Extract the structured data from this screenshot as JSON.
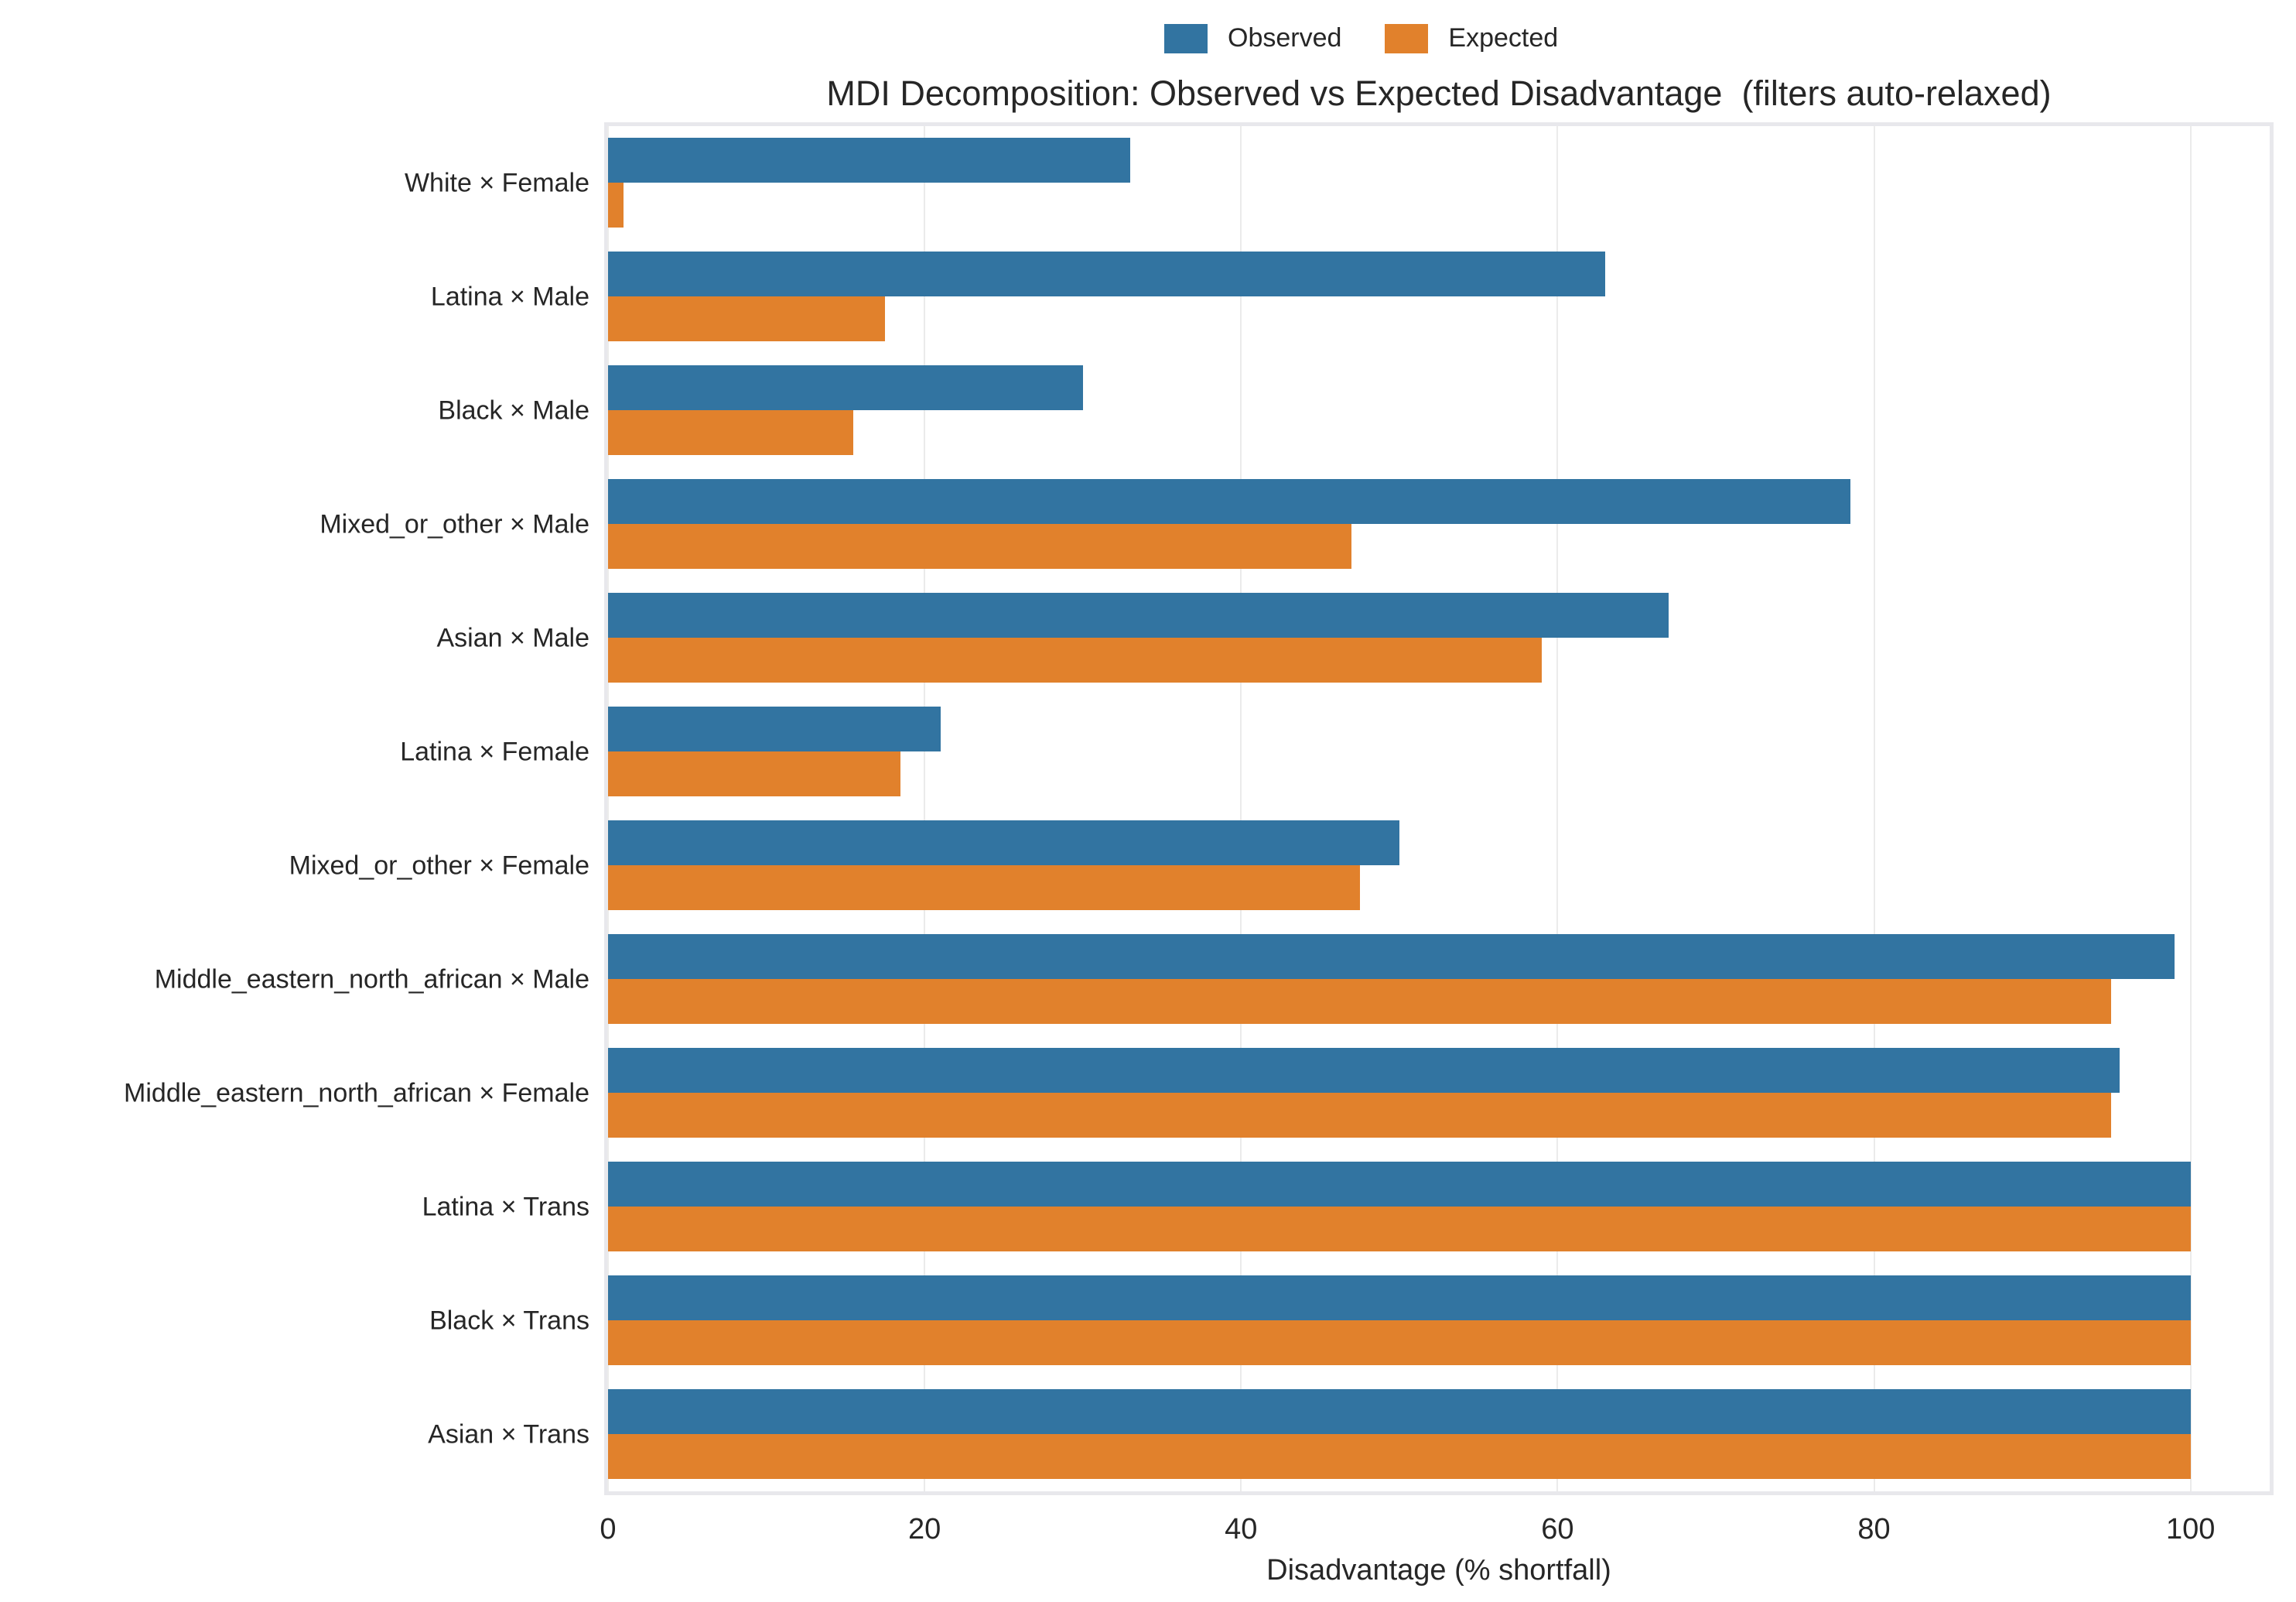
{
  "chart_data": {
    "type": "bar",
    "orientation": "horizontal",
    "title": "MDI Decomposition: Observed vs Expected Disadvantage  (filters auto-relaxed)",
    "xlabel": "Disadvantage (% shortfall)",
    "ylabel": "",
    "categories": [
      "White × Female",
      "Latina × Male",
      "Black × Male",
      "Mixed_or_other × Male",
      "Asian × Male",
      "Latina × Female",
      "Mixed_or_other × Female",
      "Middle_eastern_north_african × Male",
      "Middle_eastern_north_african × Female",
      "Latina × Trans",
      "Black × Trans",
      "Asian × Trans"
    ],
    "series": [
      {
        "name": "Observed",
        "color": "#3274a1",
        "values": [
          33,
          63,
          30,
          78.5,
          67,
          21,
          50,
          99,
          95.5,
          100,
          100,
          100
        ]
      },
      {
        "name": "Expected",
        "color": "#e1812c",
        "values": [
          1,
          17.5,
          15.5,
          47,
          59,
          18.5,
          47.5,
          95,
          95,
          100,
          100,
          100
        ]
      }
    ],
    "xticks": [
      0,
      20,
      40,
      60,
      80,
      100
    ],
    "xlim": [
      0,
      105
    ],
    "grid": "vertical",
    "legend_position": "top-center"
  }
}
